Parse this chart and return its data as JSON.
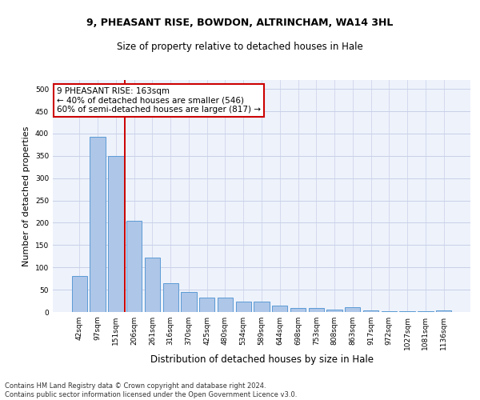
{
  "title_line1": "9, PHEASANT RISE, BOWDON, ALTRINCHAM, WA14 3HL",
  "title_line2": "Size of property relative to detached houses in Hale",
  "xlabel": "Distribution of detached houses by size in Hale",
  "ylabel": "Number of detached properties",
  "categories": [
    "42sqm",
    "97sqm",
    "151sqm",
    "206sqm",
    "261sqm",
    "316sqm",
    "370sqm",
    "425sqm",
    "480sqm",
    "534sqm",
    "589sqm",
    "644sqm",
    "698sqm",
    "753sqm",
    "808sqm",
    "863sqm",
    "917sqm",
    "972sqm",
    "1027sqm",
    "1081sqm",
    "1136sqm"
  ],
  "values": [
    80,
    392,
    350,
    205,
    122,
    64,
    44,
    32,
    32,
    23,
    23,
    14,
    9,
    9,
    6,
    10,
    3,
    2,
    2,
    2,
    4
  ],
  "bar_color": "#aec6e8",
  "bar_edge_color": "#5b9bd5",
  "vline_x_index": 2,
  "vline_color": "#cc0000",
  "annotation_text": "9 PHEASANT RISE: 163sqm\n← 40% of detached houses are smaller (546)\n60% of semi-detached houses are larger (817) →",
  "annotation_box_color": "#ffffff",
  "annotation_box_edge": "#cc0000",
  "ylim": [
    0,
    520
  ],
  "yticks": [
    0,
    50,
    100,
    150,
    200,
    250,
    300,
    350,
    400,
    450,
    500
  ],
  "footer_line1": "Contains HM Land Registry data © Crown copyright and database right 2024.",
  "footer_line2": "Contains public sector information licensed under the Open Government Licence v3.0.",
  "background_color": "#eef2fb",
  "grid_color": "#c8d0e8",
  "title1_fontsize": 9,
  "title2_fontsize": 8.5,
  "ylabel_fontsize": 8,
  "xlabel_fontsize": 8.5,
  "tick_fontsize": 6.5,
  "footer_fontsize": 6,
  "ann_fontsize": 7.5
}
